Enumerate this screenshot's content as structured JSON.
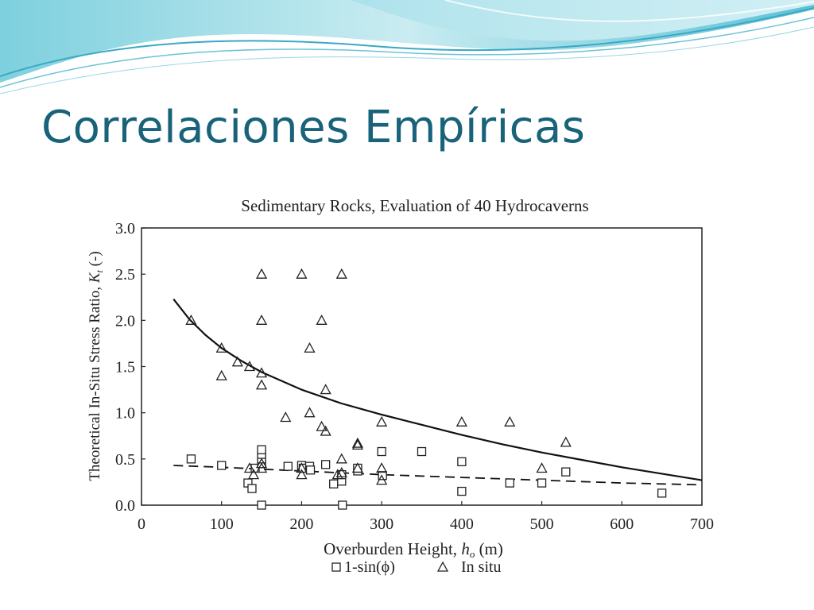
{
  "slide": {
    "title": "Correlaciones Empíricas",
    "accent_color": "#18637a"
  },
  "chart_data": {
    "type": "scatter",
    "title": "Sedimentary Rocks, Evaluation of 40 Hydrocaverns",
    "xlabel": "Overburden Height, hₒ (m)",
    "xlabel_main": "Overburden Height, ",
    "xlabel_symbol": "h",
    "xlabel_sub": "o",
    "xlabel_unit": " (m)",
    "ylabel_main": "Theoretical In-Situ Stress Ratio, ",
    "ylabel_symbol": "K",
    "ylabel_sub": "t",
    "ylabel_unit": " (-)",
    "xlim": [
      0,
      700
    ],
    "ylim": [
      0,
      3
    ],
    "xticks": [
      "0",
      "100",
      "200",
      "300",
      "400",
      "500",
      "600",
      "700"
    ],
    "yticks": [
      "0.0",
      "0.5",
      "1.0",
      "1.5",
      "2.0",
      "2.5",
      "3.0"
    ],
    "grid": false,
    "legend_position": "bottom",
    "series": [
      {
        "name": "1-sin(ϕ)",
        "marker": "square",
        "points": [
          [
            62,
            0.5
          ],
          [
            100,
            0.43
          ],
          [
            133,
            0.24
          ],
          [
            138,
            0.18
          ],
          [
            142,
            0.4
          ],
          [
            150,
            0.0
          ],
          [
            150,
            0.45
          ],
          [
            150,
            0.5
          ],
          [
            150,
            0.55
          ],
          [
            150,
            0.6
          ],
          [
            183,
            0.42
          ],
          [
            200,
            0.43
          ],
          [
            202,
            0.4
          ],
          [
            210,
            0.42
          ],
          [
            211,
            0.38
          ],
          [
            230,
            0.44
          ],
          [
            240,
            0.23
          ],
          [
            250,
            0.26
          ],
          [
            250,
            0.33
          ],
          [
            251,
            0.0
          ],
          [
            270,
            0.37
          ],
          [
            270,
            0.4
          ],
          [
            300,
            0.58
          ],
          [
            301,
            0.32
          ],
          [
            350,
            0.58
          ],
          [
            400,
            0.47
          ],
          [
            400,
            0.15
          ],
          [
            460,
            0.24
          ],
          [
            500,
            0.24
          ],
          [
            530,
            0.36
          ],
          [
            650,
            0.13
          ]
        ]
      },
      {
        "name": "In situ",
        "marker": "triangle",
        "points": [
          [
            62,
            2.0
          ],
          [
            100,
            1.7
          ],
          [
            100,
            1.4
          ],
          [
            120,
            1.55
          ],
          [
            135,
            1.5
          ],
          [
            135,
            0.4
          ],
          [
            140,
            0.33
          ],
          [
            150,
            2.5
          ],
          [
            150,
            2.0
          ],
          [
            150,
            1.43
          ],
          [
            150,
            1.3
          ],
          [
            150,
            0.45
          ],
          [
            150,
            0.4
          ],
          [
            180,
            0.95
          ],
          [
            200,
            2.5
          ],
          [
            200,
            0.33
          ],
          [
            200,
            0.4
          ],
          [
            210,
            1.7
          ],
          [
            210,
            1.0
          ],
          [
            225,
            2.0
          ],
          [
            225,
            0.85
          ],
          [
            230,
            1.25
          ],
          [
            230,
            0.8
          ],
          [
            245,
            0.33
          ],
          [
            250,
            2.5
          ],
          [
            250,
            0.5
          ],
          [
            250,
            0.35
          ],
          [
            270,
            0.67
          ],
          [
            270,
            0.65
          ],
          [
            270,
            0.4
          ],
          [
            300,
            0.9
          ],
          [
            300,
            0.4
          ],
          [
            300,
            0.27
          ],
          [
            400,
            0.9
          ],
          [
            460,
            0.9
          ],
          [
            500,
            0.4
          ],
          [
            530,
            0.68
          ]
        ]
      }
    ],
    "fit_curves": [
      {
        "style": "solid",
        "points": [
          [
            40,
            2.23
          ],
          [
            60,
            2.01
          ],
          [
            80,
            1.84
          ],
          [
            100,
            1.7
          ],
          [
            125,
            1.56
          ],
          [
            150,
            1.44
          ],
          [
            200,
            1.25
          ],
          [
            250,
            1.1
          ],
          [
            300,
            0.98
          ],
          [
            350,
            0.87
          ],
          [
            400,
            0.76
          ],
          [
            450,
            0.66
          ],
          [
            500,
            0.57
          ],
          [
            550,
            0.49
          ],
          [
            600,
            0.41
          ],
          [
            650,
            0.34
          ],
          [
            700,
            0.27
          ]
        ]
      },
      {
        "style": "dashed",
        "points": [
          [
            40,
            0.43
          ],
          [
            100,
            0.41
          ],
          [
            200,
            0.37
          ],
          [
            300,
            0.33
          ],
          [
            400,
            0.3
          ],
          [
            500,
            0.27
          ],
          [
            600,
            0.24
          ],
          [
            700,
            0.22
          ]
        ]
      }
    ]
  }
}
